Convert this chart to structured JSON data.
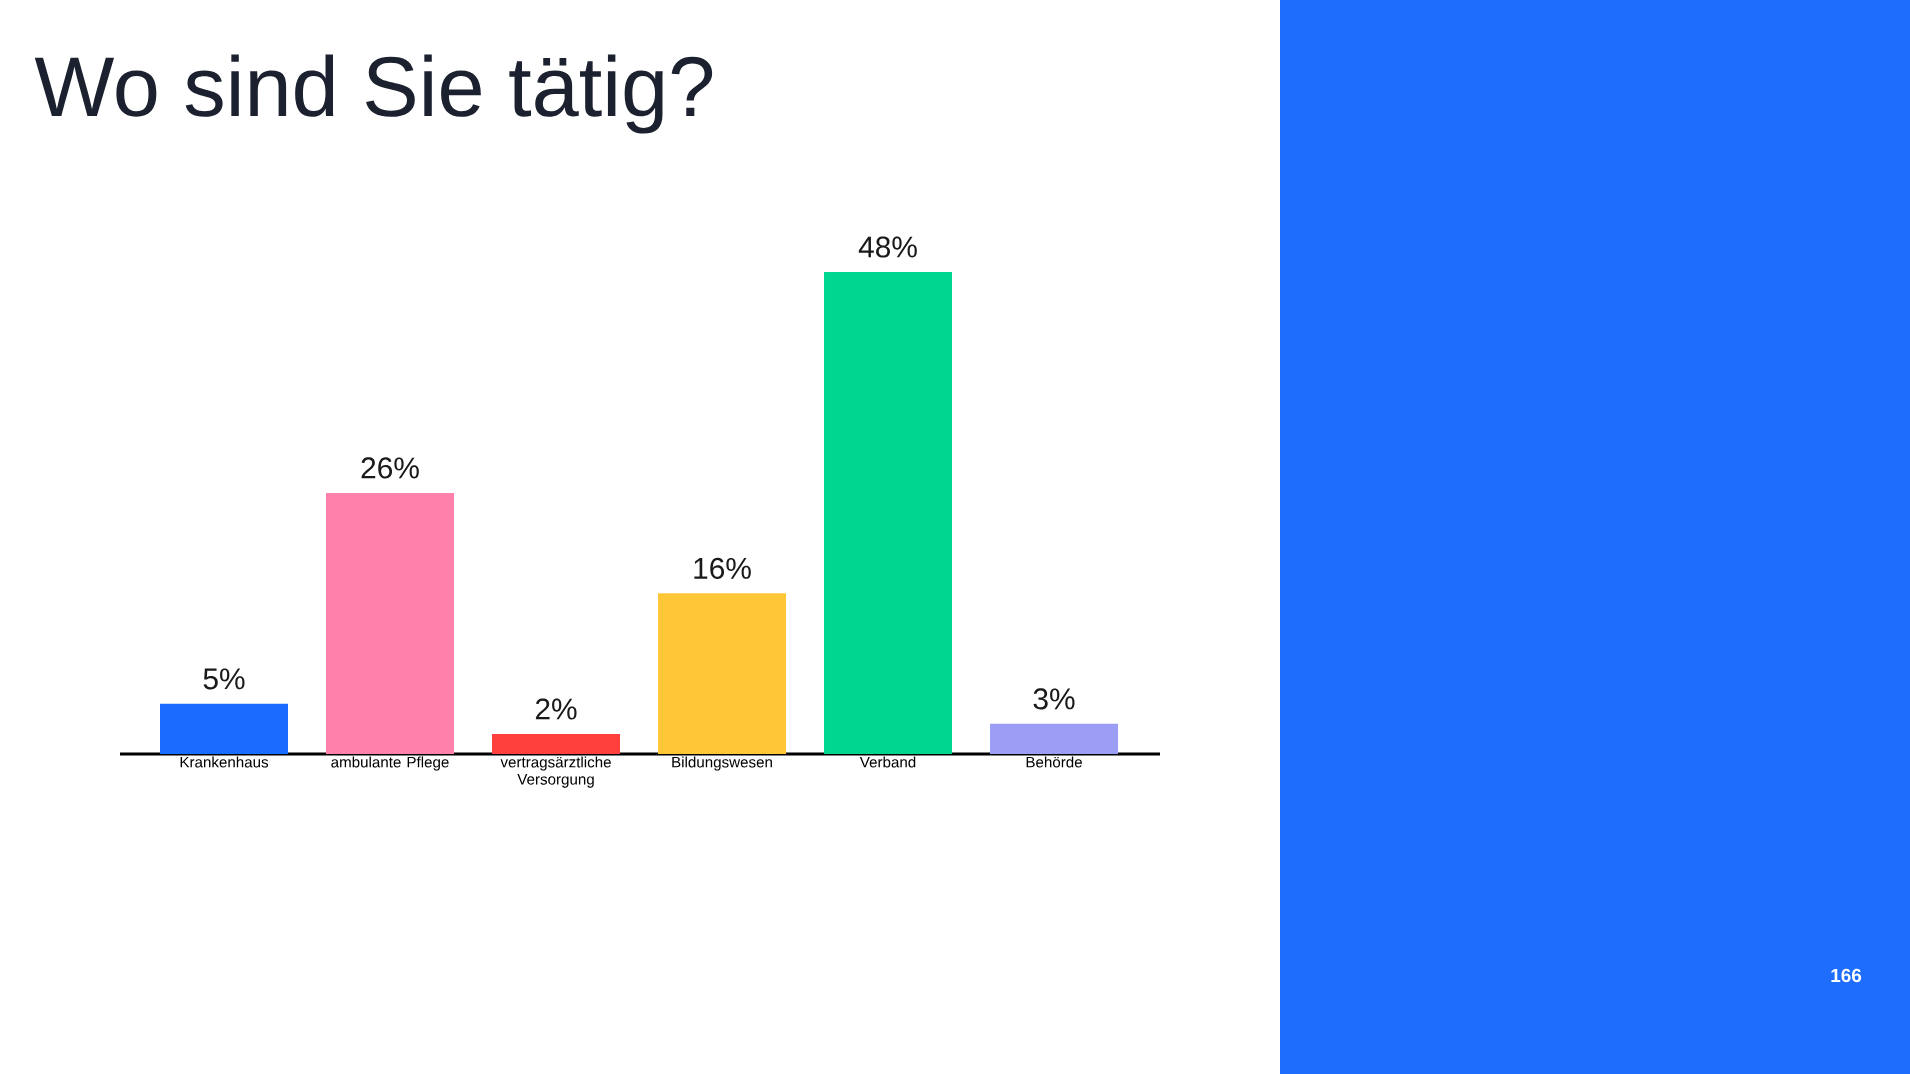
{
  "chart_data": {
    "type": "bar",
    "title": "Wo sind Sie tätig?",
    "categories": [
      "Krankenhaus",
      "ambulante Pflege",
      "vertragsärztliche Versorgung",
      "Bildungswesen",
      "Verband",
      "Behörde"
    ],
    "values": [
      5,
      26,
      2,
      16,
      48,
      3
    ],
    "value_labels": [
      "5%",
      "26%",
      "2%",
      "16%",
      "48%",
      "3%"
    ],
    "colors": [
      "#196cff",
      "#ff80ab",
      "#ff403d",
      "#ffc738",
      "#00d68f",
      "#9c9ef5"
    ],
    "annotations": [
      "166"
    ]
  }
}
